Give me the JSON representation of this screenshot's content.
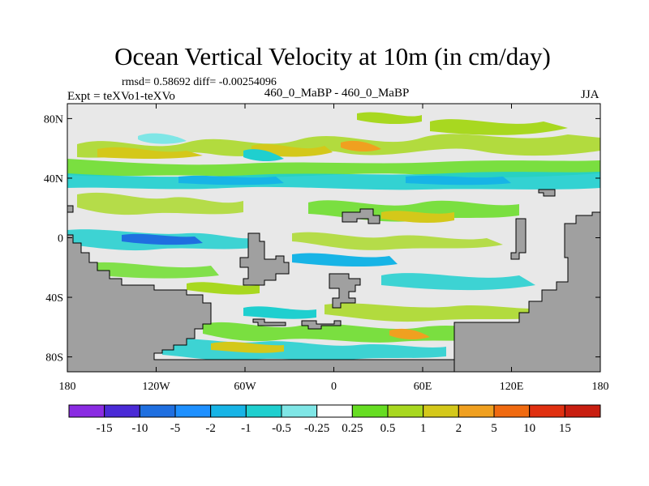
{
  "title": "Ocean Vertical Velocity at 10m (in cm/day)",
  "stats": "rmsd= 0.58692 diff= -0.00254096",
  "experiment": "Expt = teXVo1-teXVo",
  "subtitle": "460_0_MaBP - 460_0_MaBP",
  "season": "JJA",
  "colors": {
    "land": "#a0a0a0",
    "ocean_bg": "#e8e8e8",
    "frame": "#000000"
  },
  "axes": {
    "y_ticks": [
      {
        "label": "80N",
        "lat": 80
      },
      {
        "label": "40N",
        "lat": 40
      },
      {
        "label": "0",
        "lat": 0
      },
      {
        "label": "40S",
        "lat": -40
      },
      {
        "label": "80S",
        "lat": -80
      }
    ],
    "x_ticks": [
      {
        "label": "180",
        "lon": -180
      },
      {
        "label": "120W",
        "lon": -120
      },
      {
        "label": "60W",
        "lon": -60
      },
      {
        "label": "0",
        "lon": 0
      },
      {
        "label": "60E",
        "lon": 60
      },
      {
        "label": "120E",
        "lon": 120
      },
      {
        "label": "180",
        "lon": 180
      }
    ],
    "lat_range": [
      -90,
      90
    ],
    "lon_range": [
      -180,
      180
    ]
  },
  "colorbar": {
    "labels": [
      "-15",
      "-10",
      "-5",
      "-2",
      "-1",
      "-0.5",
      "-0.25",
      "0.25",
      "0.5",
      "1",
      "2",
      "5",
      "10",
      "15"
    ],
    "colors": [
      "#8a2be2",
      "#4a2ad6",
      "#1f6fe0",
      "#1e90ff",
      "#17b4e6",
      "#1fcfcf",
      "#7fe6e6",
      "#ffffff",
      "#66dd22",
      "#a8d820",
      "#d4c81a",
      "#f0a020",
      "#f06a10",
      "#e03010",
      "#c81e10"
    ]
  }
}
